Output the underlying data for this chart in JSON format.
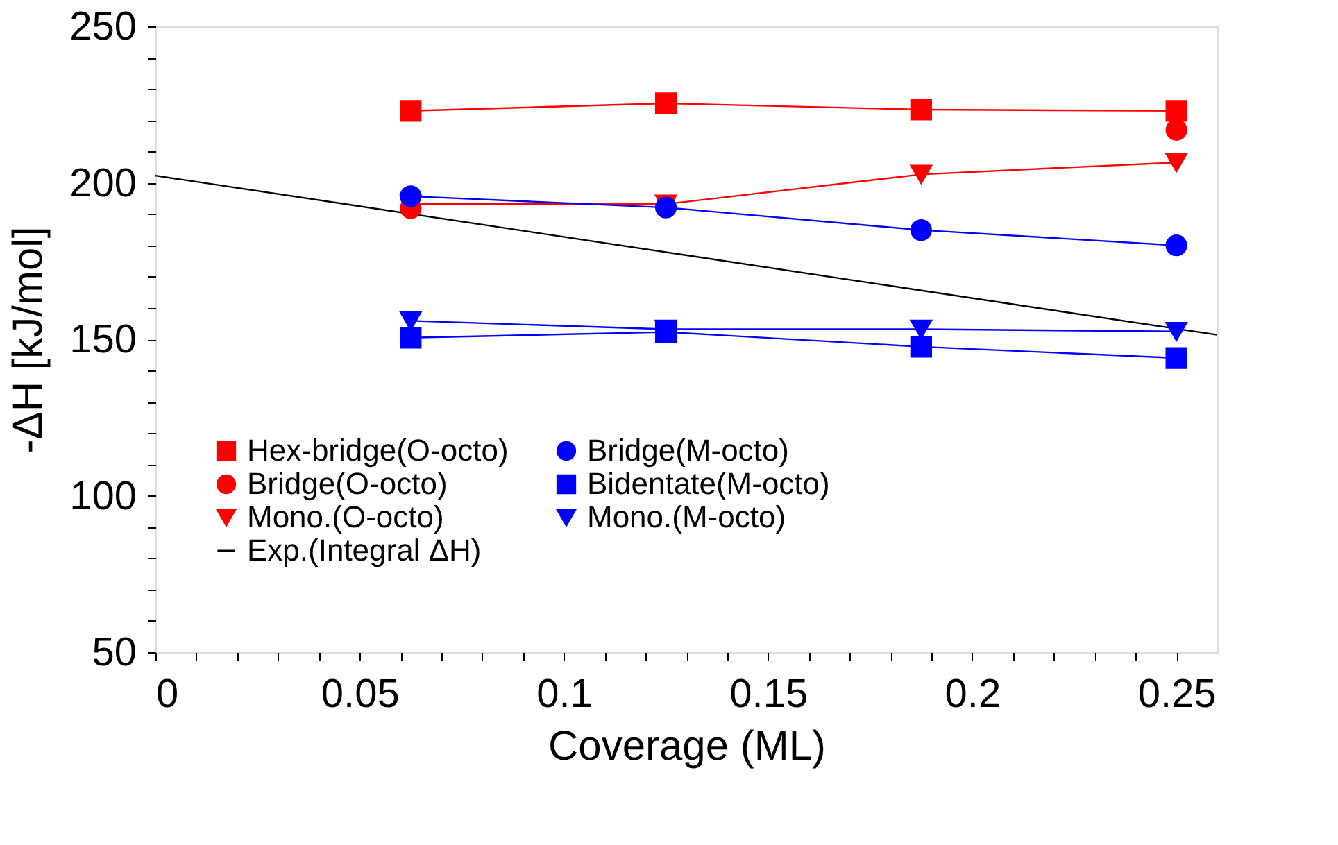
{
  "chart_data": {
    "type": "line",
    "xlabel": "Coverage (ML)",
    "ylabel": "-ΔH [kJ/mol]",
    "xlim": [
      0,
      0.26
    ],
    "ylim": [
      50,
      250
    ],
    "xticks": [
      0,
      {
        "value": 0.01,
        "label": null
      },
      {
        "value": 0.02,
        "label": null
      },
      {
        "value": 0.03,
        "label": null
      },
      {
        "value": 0.04,
        "label": null
      },
      0.05,
      {
        "value": 0.06,
        "label": null
      },
      {
        "value": 0.07,
        "label": null
      },
      {
        "value": 0.08,
        "label": null
      },
      {
        "value": 0.09,
        "label": null
      },
      0.1,
      {
        "value": 0.11,
        "label": null
      },
      {
        "value": 0.12,
        "label": null
      },
      {
        "value": 0.13,
        "label": null
      },
      {
        "value": 0.14,
        "label": null
      },
      0.15,
      {
        "value": 0.16,
        "label": null
      },
      {
        "value": 0.17,
        "label": null
      },
      {
        "value": 0.18,
        "label": null
      },
      {
        "value": 0.19,
        "label": null
      },
      0.2,
      {
        "value": 0.21,
        "label": null
      },
      {
        "value": 0.22,
        "label": null
      },
      {
        "value": 0.23,
        "label": null
      },
      {
        "value": 0.24,
        "label": null
      },
      0.25
    ],
    "yticks": [
      50,
      {
        "value": 60,
        "label": null
      },
      {
        "value": 70,
        "label": null
      },
      {
        "value": 80,
        "label": null
      },
      {
        "value": 90,
        "label": null
      },
      100,
      {
        "value": 110,
        "label": null
      },
      {
        "value": 120,
        "label": null
      },
      {
        "value": 130,
        "label": null
      },
      {
        "value": 140,
        "label": null
      },
      150,
      {
        "value": 160,
        "label": null
      },
      {
        "value": 170,
        "label": null
      },
      {
        "value": 180,
        "label": null
      },
      {
        "value": 190,
        "label": null
      },
      200,
      {
        "value": 210,
        "label": null
      },
      {
        "value": 220,
        "label": null
      },
      {
        "value": 230,
        "label": null
      },
      {
        "value": 240,
        "label": null
      },
      250
    ],
    "grid": false,
    "legend": "bottom left",
    "line_style": "solid",
    "x": [
      0.0625,
      0.125,
      0.1875,
      0.25
    ],
    "series": [
      {
        "name": "Hex-bridge(O-octo)",
        "color": "#ff0000",
        "marker": "square",
        "values": [
          223.0,
          225.4,
          223.4,
          223.0
        ]
      },
      {
        "name": "Bridge(O-octo)",
        "color": "#ff0000",
        "type": "scatter",
        "marker": "circle",
        "values": [
          191.9,
          null,
          null,
          216.9
        ]
      },
      {
        "name": "Mono.(O-octo)",
        "color": "#ff0000",
        "marker": "triangle",
        "values": [
          193.2,
          193.2,
          202.7,
          206.5
        ]
      },
      {
        "name": "Exp.(Integral ΔH)",
        "color": "#000000",
        "marker": "none",
        "x": [
          0,
          0.26
        ],
        "values": [
          202.3,
          151.4
        ]
      },
      {
        "name": "Bridge(M-octo)",
        "color": "#0000ff",
        "marker": "circle",
        "values": [
          195.7,
          192.1,
          184.9,
          180.0
        ]
      },
      {
        "name": "Bidentate(M-octo)",
        "color": "#0000ff",
        "marker": "square",
        "values": [
          150.5,
          152.3,
          147.6,
          144.0
        ]
      },
      {
        "name": "Mono.(M-octo)",
        "color": "#0000ff",
        "marker": "triangle",
        "values": [
          155.9,
          153.2,
          153.2,
          152.5
        ]
      }
    ]
  }
}
